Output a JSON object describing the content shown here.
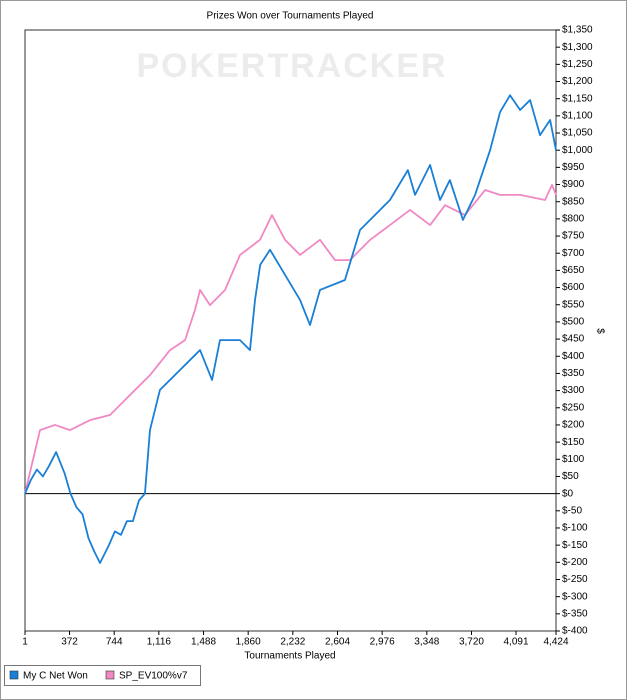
{
  "chart_data": {
    "type": "line",
    "title": "Prizes Won over Tournaments Played",
    "watermark": "POKERTRACKER",
    "x_label": "Tournaments Played",
    "y_label": "$",
    "xlim": [
      1,
      4424
    ],
    "ylim": [
      -400,
      1350
    ],
    "xticks": [
      1,
      372,
      744,
      {
        "value": 1116,
        "label": "1,116"
      },
      {
        "value": 1488,
        "label": "1,488"
      },
      {
        "value": 1860,
        "label": "1,860"
      },
      {
        "value": 2232,
        "label": "2,232"
      },
      {
        "value": 2604,
        "label": "2,604"
      },
      {
        "value": 2976,
        "label": "2,976"
      },
      {
        "value": 3348,
        "label": "3,348"
      },
      {
        "value": 3720,
        "label": "3,720"
      },
      {
        "value": 4091,
        "label": "4,091"
      },
      {
        "value": 4424,
        "label": "4,424"
      }
    ],
    "yticks": [
      {
        "value": -400,
        "label": "$-400"
      },
      {
        "value": -350,
        "label": "$-350"
      },
      {
        "value": -300,
        "label": "$-300"
      },
      {
        "value": -250,
        "label": "$-250"
      },
      {
        "value": -200,
        "label": "$-200"
      },
      {
        "value": -150,
        "label": "$-150"
      },
      {
        "value": -100,
        "label": "$-100"
      },
      {
        "value": -50,
        "label": "$-50"
      },
      {
        "value": 0,
        "label": "$0"
      },
      {
        "value": 50,
        "label": "$50"
      },
      {
        "value": 100,
        "label": "$100"
      },
      {
        "value": 150,
        "label": "$150"
      },
      {
        "value": 200,
        "label": "$200"
      },
      {
        "value": 250,
        "label": "$250"
      },
      {
        "value": 300,
        "label": "$300"
      },
      {
        "value": 350,
        "label": "$350"
      },
      {
        "value": 400,
        "label": "$400"
      },
      {
        "value": 450,
        "label": "$450"
      },
      {
        "value": 500,
        "label": "$500"
      },
      {
        "value": 550,
        "label": "$550"
      },
      {
        "value": 600,
        "label": "$600"
      },
      {
        "value": 650,
        "label": "$650"
      },
      {
        "value": 700,
        "label": "$700"
      },
      {
        "value": 750,
        "label": "$750"
      },
      {
        "value": 800,
        "label": "$800"
      },
      {
        "value": 850,
        "label": "$850"
      },
      {
        "value": 900,
        "label": "$900"
      },
      {
        "value": 950,
        "label": "$950"
      },
      {
        "value": 1000,
        "label": "$1,000"
      },
      {
        "value": 1050,
        "label": "$1,050"
      },
      {
        "value": 1100,
        "label": "$1,100"
      },
      {
        "value": 1150,
        "label": "$1,150"
      },
      {
        "value": 1200,
        "label": "$1,200"
      },
      {
        "value": 1250,
        "label": "$1,250"
      },
      {
        "value": 1300,
        "label": "$1,300"
      },
      {
        "value": 1350,
        "label": "$1,350"
      }
    ],
    "series": [
      {
        "name": "My C Net Won",
        "color": "#1a7fd6",
        "x": [
          1,
          50,
          100,
          150,
          200,
          260,
          330,
          380,
          430,
          480,
          530,
          580,
          626,
          700,
          750,
          800,
          850,
          900,
          950,
          1000,
          1042,
          1125,
          1292,
          1459,
          1559,
          1625,
          1792,
          1875,
          1917,
          1960,
          2042,
          2292,
          2375,
          2458,
          2666,
          2792,
          2958,
          3041,
          3190,
          3250,
          3375,
          3458,
          3540,
          3649,
          3750,
          3875,
          3958,
          4041,
          4125,
          4208,
          4291,
          4375,
          4424
        ],
        "values": [
          0,
          40,
          70,
          50,
          80,
          121,
          60,
          0,
          -40,
          -60,
          -130,
          -170,
          -202,
          -150,
          -110,
          -120,
          -80,
          -80,
          -20,
          0,
          185,
          302,
          360,
          418,
          331,
          447,
          447,
          418,
          564,
          666,
          710,
          564,
          491,
          593,
          622,
          768,
          826,
          855,
          942,
          870,
          957,
          855,
          913,
          797,
          870,
          1000,
          1111,
          1160,
          1117,
          1146,
          1044,
          1088,
          1000
        ]
      },
      {
        "name": "SP_EV100%v7",
        "color": "#f088c4",
        "x": [
          1,
          126,
          250,
          376,
          542,
          709,
          875,
          1042,
          1209,
          1334,
          1417,
          1459,
          1542,
          1667,
          1792,
          1958,
          2058,
          2167,
          2292,
          2458,
          2583,
          2708,
          2875,
          3041,
          3208,
          3375,
          3500,
          3666,
          3833,
          3958,
          4125,
          4333,
          4391,
          4424
        ],
        "values": [
          0,
          185,
          200,
          185,
          214,
          229,
          287,
          345,
          418,
          447,
          535,
          593,
          549,
          593,
          695,
          739,
          811,
          739,
          695,
          739,
          680,
          680,
          739,
          782,
          826,
          782,
          840,
          811,
          884,
          870,
          870,
          855,
          899,
          870
        ]
      }
    ]
  }
}
